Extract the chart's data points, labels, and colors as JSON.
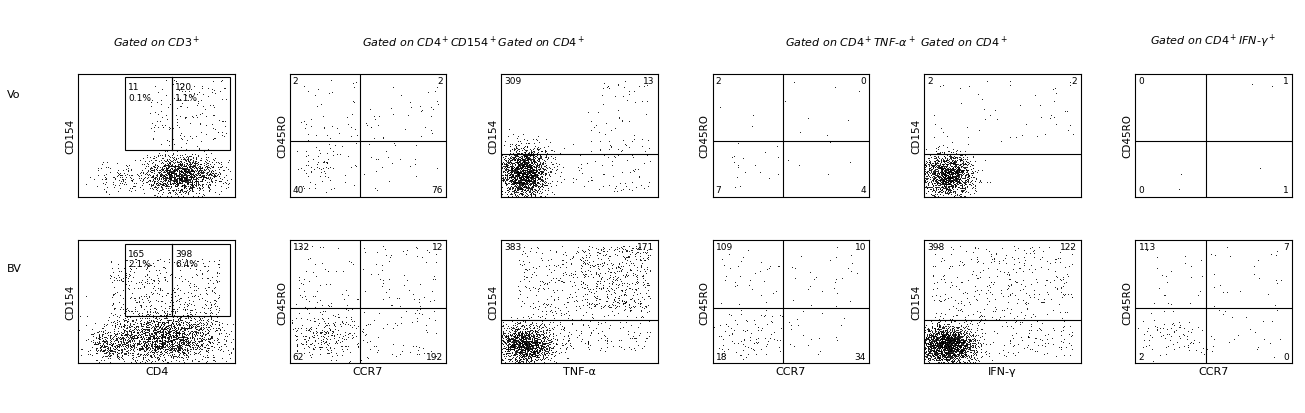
{
  "title_top": [
    "Gated on CD3⁺",
    "Gated on CD4⁺CD154⁺Gated on CD4⁺",
    "Gated on CD4⁺TNF-α⁺ Gated on CD4⁺",
    "Gated on CD4⁺IFN-γ⁺"
  ],
  "row_labels": [
    "Vo",
    "BV"
  ],
  "panels": [
    {
      "row": 0,
      "col": 0,
      "xlabel": "CD4",
      "ylabel": "CD154",
      "quadrant_counts": [
        "11",
        "120",
        "0.1%  1.1%",
        "",
        ""
      ],
      "tl": "11\n0.1%",
      "tr": "120\n1.1%",
      "bl": "",
      "br": "",
      "has_inner_gate": true,
      "dot_pattern": "scatter_lower_right_dense_upper_right_sparse"
    },
    {
      "row": 0,
      "col": 1,
      "xlabel": "CCR7",
      "ylabel": "CD45RO",
      "tl": "2",
      "tr": "2",
      "bl": "40",
      "br": "76",
      "has_inner_gate": false
    },
    {
      "row": 0,
      "col": 2,
      "xlabel": "TNF-α",
      "ylabel": "CD154",
      "tl": "309",
      "tr": "13",
      "bl": "",
      "br": "",
      "has_inner_gate": false
    },
    {
      "row": 0,
      "col": 3,
      "xlabel": "CCR7",
      "ylabel": "CD45RO",
      "tl": "2",
      "tr": "0",
      "bl": "7",
      "br": "4",
      "has_inner_gate": false
    },
    {
      "row": 0,
      "col": 4,
      "xlabel": "IFN-γ",
      "ylabel": "CD154",
      "tl": "2",
      "tr": "2",
      "bl": "",
      "br": "",
      "has_inner_gate": false
    },
    {
      "row": 0,
      "col": 5,
      "xlabel": "CCR7",
      "ylabel": "CD45RO",
      "tl": "0",
      "tr": "1",
      "bl": "0",
      "br": "1",
      "has_inner_gate": false
    },
    {
      "row": 1,
      "col": 0,
      "xlabel": "CD4",
      "ylabel": "CD154",
      "tl": "165\n2.1%",
      "tr": "398\n6.4%",
      "bl": "",
      "br": "",
      "has_inner_gate": true
    },
    {
      "row": 1,
      "col": 1,
      "xlabel": "CCR7",
      "ylabel": "CD45RO",
      "tl": "132",
      "tr": "12",
      "bl": "62",
      "br": "192",
      "has_inner_gate": false
    },
    {
      "row": 1,
      "col": 2,
      "xlabel": "TNF-α",
      "ylabel": "CD154",
      "tl": "383",
      "tr": "171",
      "bl": "",
      "br": "",
      "has_inner_gate": false
    },
    {
      "row": 1,
      "col": 3,
      "xlabel": "CCR7",
      "ylabel": "CD45RO",
      "tl": "109",
      "tr": "10",
      "bl": "18",
      "br": "34",
      "has_inner_gate": false
    },
    {
      "row": 1,
      "col": 4,
      "xlabel": "IFN-γ",
      "ylabel": "CD154",
      "tl": "398",
      "tr": "122",
      "bl": "",
      "br": "",
      "has_inner_gate": false
    },
    {
      "row": 1,
      "col": 5,
      "xlabel": "CCR7",
      "ylabel": "CD45RO",
      "tl": "113",
      "tr": "7",
      "bl": "2",
      "br": "0",
      "has_inner_gate": false
    }
  ],
  "background_color": "#ffffff",
  "dot_color": "#000000",
  "line_color": "#000000",
  "font_size_title": 8,
  "font_size_label": 8,
  "font_size_count": 6.5
}
